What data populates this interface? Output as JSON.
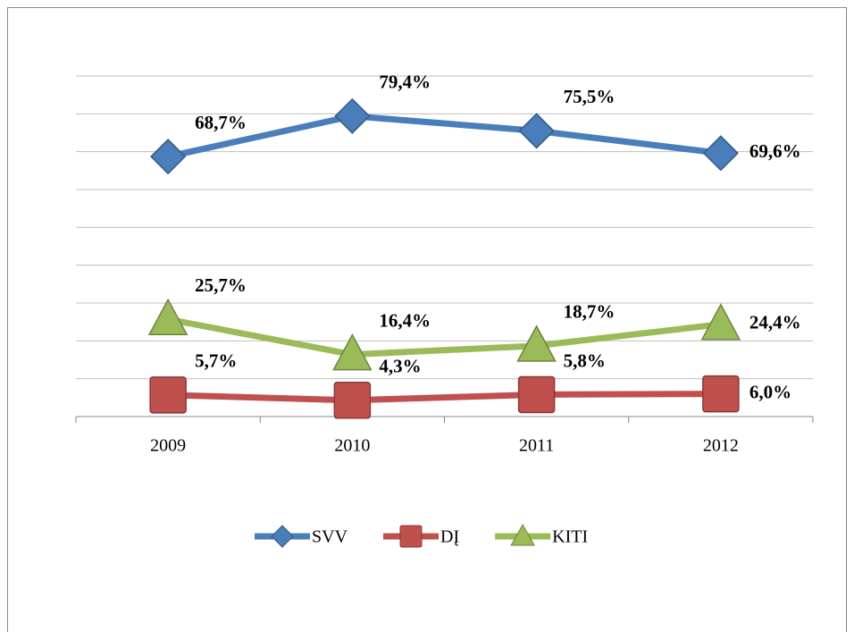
{
  "chart_data": {
    "type": "line",
    "categories": [
      "2009",
      "2010",
      "2011",
      "2012"
    ],
    "series": [
      {
        "name": "SVV",
        "color": "#4a7ebb",
        "marker": "diamond",
        "values": [
          68.7,
          79.4,
          75.5,
          69.6
        ],
        "value_labels": [
          "68,7%",
          "79,4%",
          "75,5%",
          "69,6%"
        ]
      },
      {
        "name": "DĮ",
        "color": "#c0504d",
        "marker": "square",
        "values": [
          5.7,
          4.3,
          5.8,
          6.0
        ],
        "value_labels": [
          "5,7%",
          "4,3%",
          "5,8%",
          "6,0%"
        ]
      },
      {
        "name": "KITI",
        "color": "#9bbb59",
        "marker": "triangle",
        "values": [
          25.7,
          16.4,
          18.7,
          24.4
        ],
        "value_labels": [
          "25,7%",
          "16,4%",
          "18,7%",
          "24,4%"
        ]
      }
    ],
    "ylim": [
      0,
      90
    ],
    "yticks": [
      0,
      10,
      20,
      30,
      40,
      50,
      60,
      70,
      80,
      90
    ],
    "grid": true,
    "legend": "bottom"
  }
}
